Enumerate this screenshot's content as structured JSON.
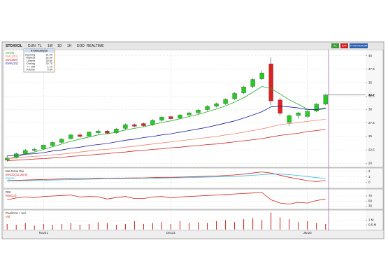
{
  "toolbar": {
    "symbol": "STOXXOL",
    "items": [
      "DUN",
      "TL",
      "1W",
      "1D",
      "1H",
      "EOD",
      "REALTIME"
    ],
    "right_items": [
      "AL",
      "SAT",
      "FİYAT/HACIM"
    ]
  },
  "info_box": {
    "date": "07January22",
    "rows": [
      [
        "Opening",
        "31.00"
      ],
      [
        "Highest",
        "32.90"
      ],
      [
        "Lowest",
        "30.80"
      ],
      [
        "Closing",
        "32.70"
      ],
      [
        "+/- Diff",
        "1.70"
      ],
      [
        "Volume",
        "0.60"
      ]
    ]
  },
  "chart_data": [
    {
      "type": "candlestick",
      "up_color": "#22cc22",
      "down_color": "#dd2222",
      "xlim": [
        -0.4,
        39.4
      ],
      "ylim": [
        19.4,
        41
      ],
      "yticks": [
        20,
        22.5,
        25,
        27.5,
        30,
        32.5,
        35,
        37.5,
        40
      ],
      "grid": true,
      "last_price": 32.7,
      "open": [
        20.6,
        21.1,
        21.8,
        22.4,
        22.7,
        23.3,
        23.9,
        24.6,
        25.3,
        25.1,
        25.7,
        26.0,
        25.7,
        26.5,
        27.2,
        27.4,
        27.2,
        28.0,
        28.7,
        28.4,
        29.0,
        29.4,
        30.0,
        30.6,
        31.1,
        32.0,
        33.1,
        34.3,
        35.7,
        38.5,
        31.8,
        27.6,
        28.9,
        28.7,
        29.7,
        31.0
      ],
      "high": [
        21.4,
        22.0,
        22.7,
        22.9,
        23.6,
        24.1,
        24.7,
        25.5,
        25.6,
        26.0,
        26.3,
        26.2,
        26.6,
        27.4,
        27.4,
        27.6,
        28.2,
        28.8,
        28.9,
        29.2,
        29.6,
        30.1,
        30.8,
        31.3,
        32.1,
        33.2,
        34.4,
        35.8,
        37.2,
        39.7,
        32.2,
        29.1,
        29.6,
        29.9,
        31.2,
        32.9
      ],
      "low": [
        20.3,
        20.9,
        21.6,
        22.2,
        22.5,
        23.1,
        23.7,
        24.4,
        24.8,
        24.9,
        25.5,
        25.4,
        25.5,
        26.3,
        26.7,
        26.8,
        27.0,
        27.8,
        28.1,
        28.2,
        28.8,
        29.2,
        29.8,
        30.4,
        30.9,
        31.8,
        32.9,
        34.0,
        35.5,
        30.8,
        28.9,
        27.0,
        28.3,
        28.5,
        29.5,
        30.8
      ],
      "close": [
        21.0,
        21.8,
        22.4,
        22.6,
        23.4,
        23.9,
        24.5,
        25.3,
        25.0,
        25.8,
        26.0,
        25.6,
        26.4,
        27.2,
        26.9,
        27.0,
        28.0,
        28.6,
        28.3,
        29.0,
        29.4,
        29.9,
        30.6,
        31.1,
        31.9,
        33.0,
        34.2,
        35.6,
        36.8,
        31.6,
        29.3,
        28.9,
        29.4,
        29.7,
        31.0,
        32.7
      ],
      "series": [
        {
          "name": "MA(9)",
          "color": "#22aa22",
          "values": [
            20.8,
            21.2,
            21.7,
            22.1,
            22.6,
            23.1,
            23.6,
            24.1,
            24.5,
            24.9,
            25.3,
            25.5,
            25.8,
            26.2,
            26.5,
            26.8,
            27.2,
            27.6,
            27.9,
            28.3,
            28.7,
            29.1,
            29.6,
            30.1,
            30.7,
            31.4,
            32.2,
            33.2,
            34.3,
            33.9,
            32.9,
            31.8,
            31.0,
            30.1,
            29.9,
            30.2
          ]
        },
        {
          "name": "MA(100)",
          "color": "#f08070",
          "values": [
            20.9,
            21.0,
            21.2,
            21.3,
            21.4,
            21.6,
            21.7,
            21.9,
            22.1,
            22.3,
            22.5,
            22.6,
            22.8,
            23.0,
            23.2,
            23.4,
            23.6,
            23.8,
            24.0,
            24.2,
            24.4,
            24.6,
            24.8,
            25.0,
            25.3,
            25.5,
            25.8,
            26.1,
            26.4,
            26.8,
            27.2,
            27.4,
            27.6,
            27.8,
            28.0,
            28.2
          ]
        },
        {
          "name": "MA(200)",
          "color": "#cc2222",
          "values": [
            20.5,
            20.6,
            20.7,
            20.8,
            20.9,
            21.0,
            21.1,
            21.3,
            21.4,
            21.5,
            21.7,
            21.8,
            22.0,
            22.1,
            22.3,
            22.4,
            22.6,
            22.7,
            22.9,
            23.0,
            23.2,
            23.3,
            23.5,
            23.6,
            23.8,
            24.0,
            24.2,
            24.4,
            24.6,
            24.9,
            25.2,
            25.4,
            25.6,
            25.9,
            26.1,
            26.3
          ]
        },
        {
          "name": "EMA(21)",
          "color": "#1a1aa0",
          "values": [
            21.4,
            21.5,
            21.7,
            21.8,
            22.0,
            22.3,
            22.5,
            22.8,
            23.0,
            23.3,
            23.5,
            23.7,
            24.0,
            24.3,
            24.5,
            24.8,
            25.0,
            25.3,
            25.5,
            25.8,
            26.1,
            26.4,
            26.7,
            27.1,
            27.5,
            27.9,
            28.4,
            29.0,
            29.6,
            30.5,
            30.6,
            30.5,
            30.3,
            30.0,
            30.0,
            30.3
          ]
        }
      ]
    },
    {
      "type": "line",
      "title": "MA Conv Div",
      "xlim": [
        -0.4,
        39.4
      ],
      "ylim": [
        -1,
        2.5
      ],
      "yticks": [
        0,
        1,
        2
      ],
      "grid": true,
      "series": [
        {
          "name": "MACD(12,26,9)",
          "color": "#cc2222",
          "values": [
            0.3,
            0.35,
            0.4,
            0.45,
            0.5,
            0.55,
            0.6,
            0.65,
            0.7,
            0.7,
            0.72,
            0.7,
            0.72,
            0.78,
            0.8,
            0.8,
            0.85,
            0.9,
            0.9,
            0.95,
            1.0,
            1.05,
            1.1,
            1.15,
            1.25,
            1.35,
            1.5,
            1.7,
            1.9,
            1.7,
            1.3,
            0.9,
            0.6,
            0.3,
            0.1,
            0.35
          ]
        },
        {
          "name": "Signal",
          "color": "#33bbdd",
          "values": [
            0.2,
            0.23,
            0.27,
            0.3,
            0.35,
            0.4,
            0.44,
            0.48,
            0.52,
            0.56,
            0.6,
            0.62,
            0.65,
            0.68,
            0.7,
            0.72,
            0.75,
            0.78,
            0.8,
            0.83,
            0.86,
            0.9,
            0.94,
            0.98,
            1.03,
            1.1,
            1.18,
            1.28,
            1.4,
            1.5,
            1.5,
            1.4,
            1.25,
            1.05,
            0.85,
            0.7
          ]
        }
      ]
    },
    {
      "type": "line",
      "title": "RSI",
      "xlim": [
        -0.4,
        39.4
      ],
      "ylim": [
        20,
        95
      ],
      "yticks": [
        30,
        50,
        70
      ],
      "grid": true,
      "series": [
        {
          "name": "RSI(14)",
          "color": "#cc2222",
          "values": [
            55,
            62,
            66,
            63,
            68,
            70,
            72,
            74,
            66,
            68,
            67,
            58,
            64,
            68,
            60,
            60,
            66,
            68,
            62,
            66,
            68,
            70,
            72,
            74,
            76,
            78,
            80,
            82,
            84,
            55,
            42,
            38,
            45,
            42,
            52,
            58
          ]
        }
      ]
    },
    {
      "type": "bar",
      "title": "Pos/Cmt + Vol",
      "xlim": [
        -0.4,
        39.4
      ],
      "ylim": [
        0,
        2
      ],
      "yticks": [
        {
          "value": 0.5,
          "label": "0.5 M"
        },
        {
          "value": 1,
          "label": "1 M"
        }
      ],
      "grid": true,
      "xticks": [
        {
          "value": 4,
          "label": "Nov21"
        },
        {
          "value": 18,
          "label": "Dec21"
        },
        {
          "value": 33,
          "label": "Jan22"
        }
      ],
      "series": [
        {
          "name": "Vol",
          "color": "#cc2222",
          "values": [
            0.6,
            0.5,
            0.7,
            0.4,
            0.6,
            0.5,
            0.6,
            0.7,
            0.5,
            0.6,
            0.8,
            0.7,
            0.5,
            0.6,
            0.9,
            0.6,
            0.7,
            0.8,
            0.6,
            0.9,
            0.7,
            0.8,
            0.7,
            0.9,
            1.0,
            0.8,
            1.1,
            1.2,
            1.0,
            1.8,
            1.3,
            1.1,
            0.8,
            0.9,
            0.7,
            0.6
          ]
        }
      ]
    }
  ]
}
